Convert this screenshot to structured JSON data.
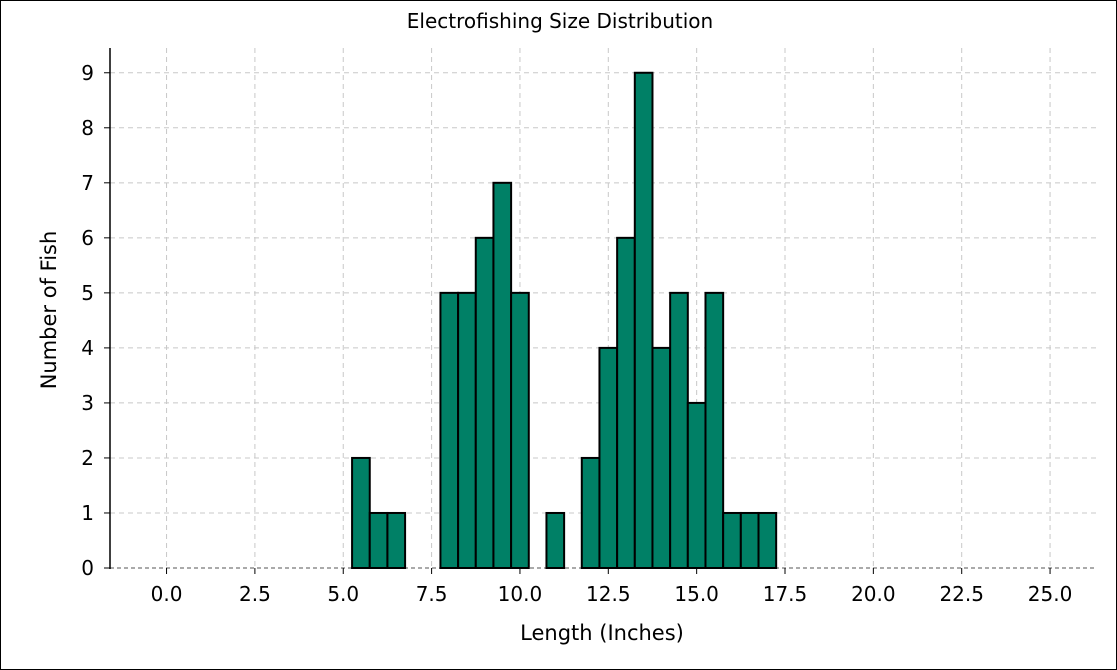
{
  "chart_data": {
    "type": "bar",
    "title": "Electrofishing Size Distribution",
    "xlabel": "Length (Inches)",
    "ylabel": "Number of Fish",
    "xlim": [
      -1.6,
      26.3
    ],
    "ylim": [
      0,
      9.45
    ],
    "xticks": [
      "0.0",
      "2.5",
      "5.0",
      "7.5",
      "10.0",
      "12.5",
      "15.0",
      "17.5",
      "20.0",
      "22.5",
      "25.0"
    ],
    "yticks": [
      "0",
      "1",
      "2",
      "3",
      "4",
      "5",
      "6",
      "7",
      "8",
      "9"
    ],
    "bin_width": 0.5,
    "bar_color": "#008066",
    "grid": true,
    "bins": [
      {
        "x0": 5.25,
        "x1": 5.75,
        "count": 2
      },
      {
        "x0": 5.75,
        "x1": 6.25,
        "count": 1
      },
      {
        "x0": 6.25,
        "x1": 6.75,
        "count": 1
      },
      {
        "x0": 7.75,
        "x1": 8.25,
        "count": 5
      },
      {
        "x0": 8.25,
        "x1": 8.75,
        "count": 5
      },
      {
        "x0": 8.75,
        "x1": 9.25,
        "count": 6
      },
      {
        "x0": 9.25,
        "x1": 9.75,
        "count": 7
      },
      {
        "x0": 9.75,
        "x1": 10.25,
        "count": 5
      },
      {
        "x0": 10.75,
        "x1": 11.25,
        "count": 1
      },
      {
        "x0": 11.75,
        "x1": 12.25,
        "count": 2
      },
      {
        "x0": 12.25,
        "x1": 12.75,
        "count": 4
      },
      {
        "x0": 12.75,
        "x1": 13.25,
        "count": 6
      },
      {
        "x0": 13.25,
        "x1": 13.75,
        "count": 9
      },
      {
        "x0": 13.75,
        "x1": 14.25,
        "count": 4
      },
      {
        "x0": 14.25,
        "x1": 14.75,
        "count": 5
      },
      {
        "x0": 14.75,
        "x1": 15.25,
        "count": 3
      },
      {
        "x0": 15.25,
        "x1": 15.75,
        "count": 5
      },
      {
        "x0": 15.75,
        "x1": 16.25,
        "count": 1
      },
      {
        "x0": 16.25,
        "x1": 16.75,
        "count": 1
      },
      {
        "x0": 16.75,
        "x1": 17.25,
        "count": 1
      }
    ]
  }
}
